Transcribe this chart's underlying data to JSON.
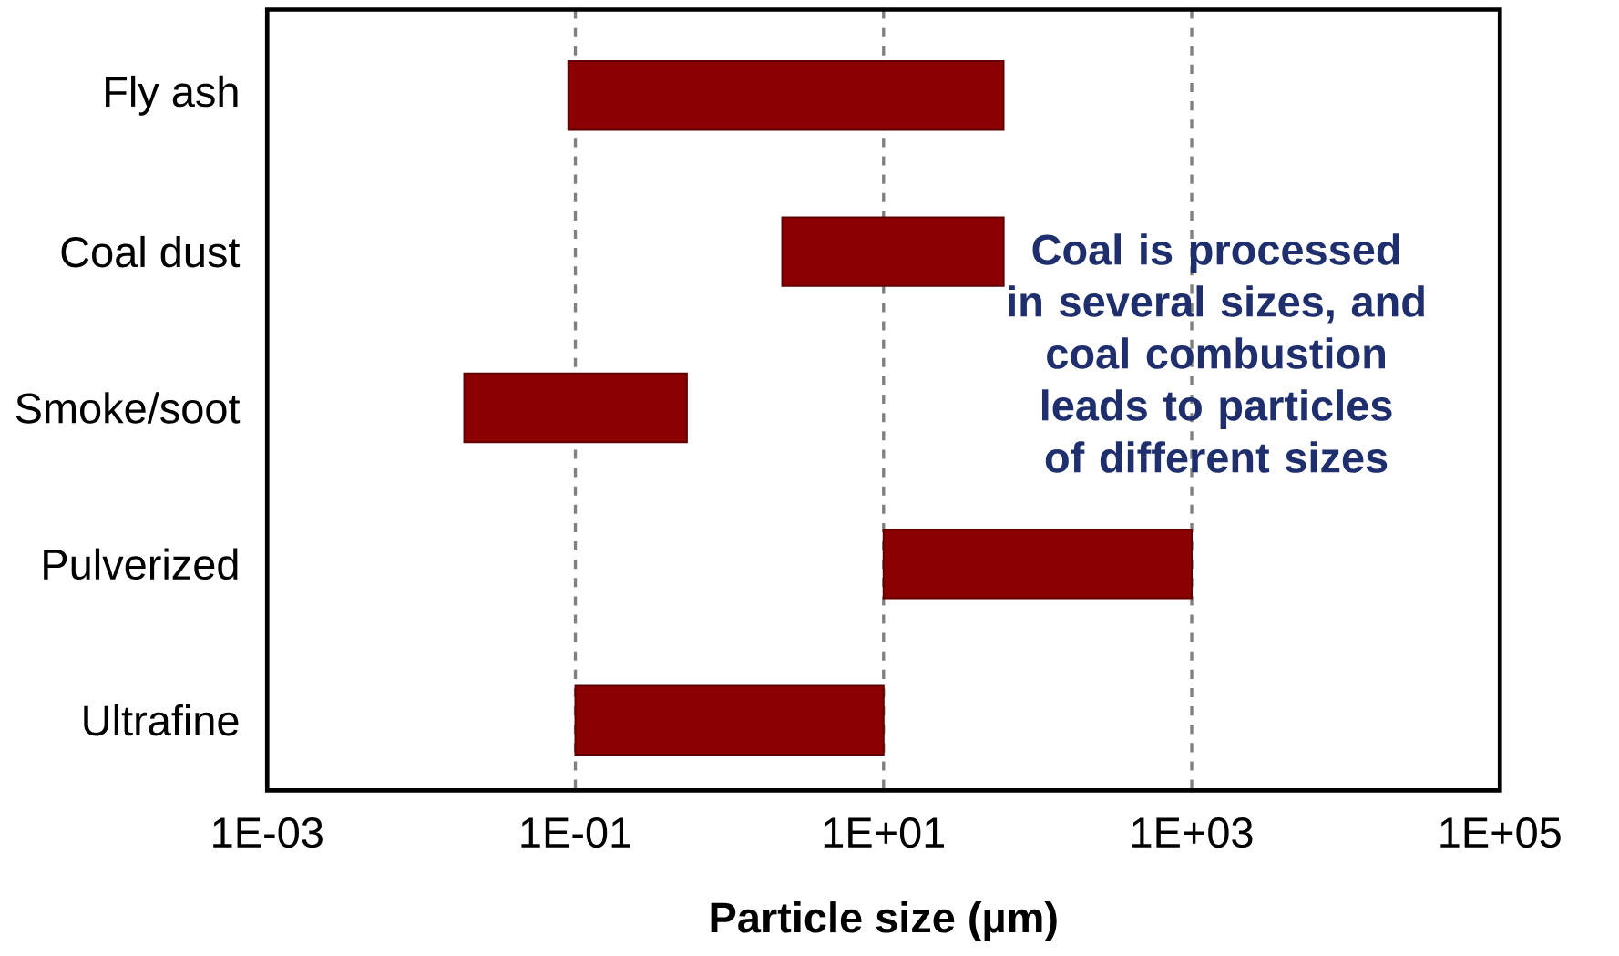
{
  "chart_data": {
    "type": "bar",
    "orientation": "horizontal",
    "log": "x",
    "grid": "x",
    "xlabel": "Particle size (µm)",
    "categories": [
      "Fly ash",
      "Coal dust",
      "Smoke/soot",
      "Pulverized",
      "Ultrafine"
    ],
    "base": [
      0.09,
      2.2,
      0.019,
      10,
      0.1
    ],
    "values": [
      60,
      58,
      0.51,
      990,
      9.9
    ],
    "color": "#8b0000",
    "xlim": [
      0.001,
      100000
    ],
    "xticks": [
      {
        "value": 0.001,
        "label": "1E-03"
      },
      {
        "value": 0.1,
        "label": "1E-01"
      },
      {
        "value": 10,
        "label": "1E+01"
      },
      {
        "value": 1000,
        "label": "1E+03"
      },
      {
        "value": 100000,
        "label": "1E+05"
      }
    ],
    "annotations": [
      "Coal is processed in several sizes, and coal combustion leads to particles of different sizes"
    ]
  }
}
